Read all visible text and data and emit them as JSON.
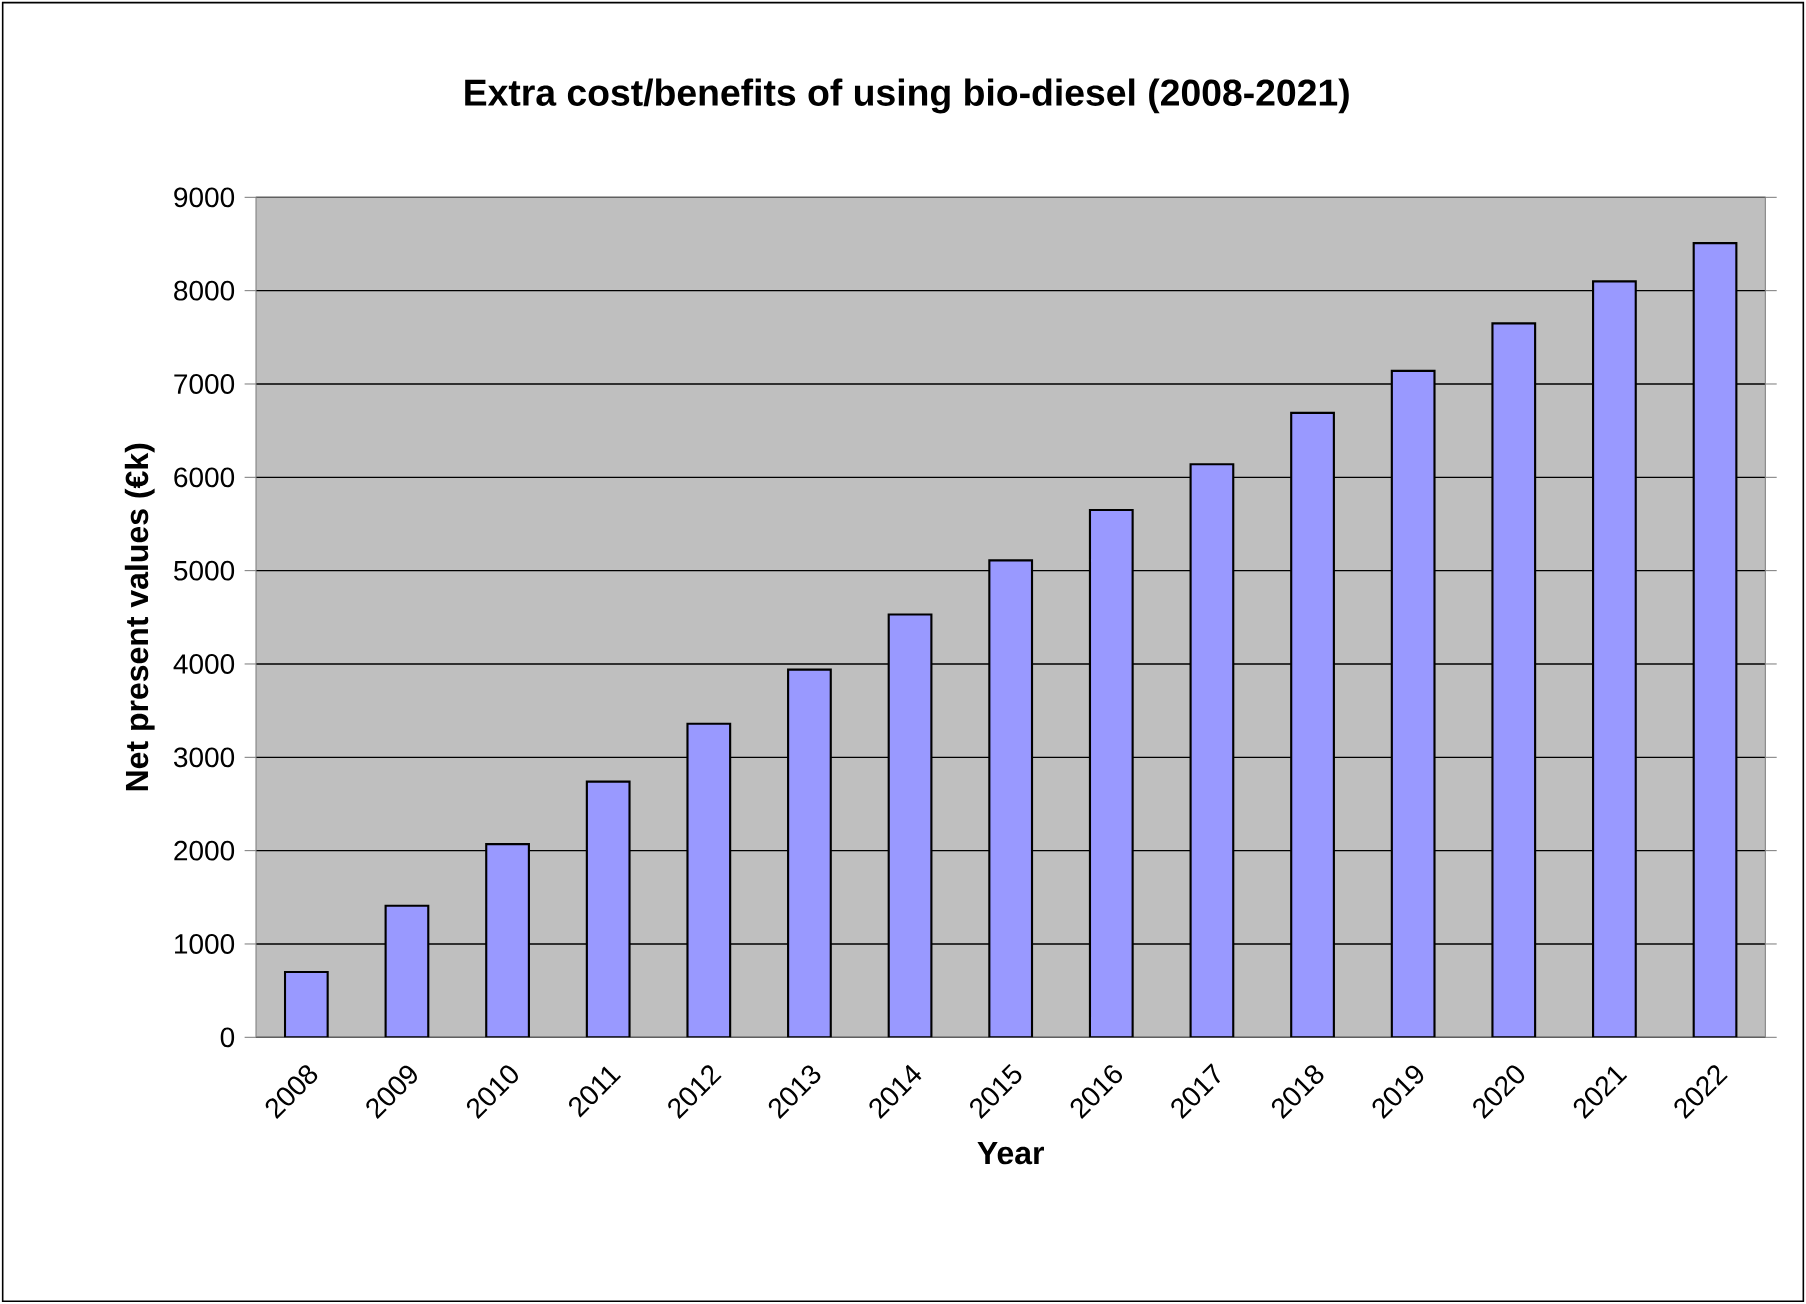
{
  "chart_data": {
    "type": "bar",
    "title": "Extra cost/benefits of using bio-diesel  (2008-2021)",
    "xlabel": "Year",
    "ylabel": "Net present values (€k)",
    "categories": [
      "2008",
      "2009",
      "2010",
      "2011",
      "2012",
      "2013",
      "2014",
      "2015",
      "2016",
      "2017",
      "2018",
      "2019",
      "2020",
      "2021",
      "2022"
    ],
    "values": [
      700,
      1410,
      2070,
      2740,
      3360,
      3940,
      4530,
      5110,
      5650,
      6140,
      6690,
      7140,
      7650,
      8100,
      8510
    ],
    "color": "#9999ff",
    "ylim": [
      0,
      9000
    ],
    "yticks": [
      0,
      1000,
      2000,
      3000,
      4000,
      5000,
      6000,
      7000,
      8000,
      9000
    ],
    "grid": "y"
  }
}
